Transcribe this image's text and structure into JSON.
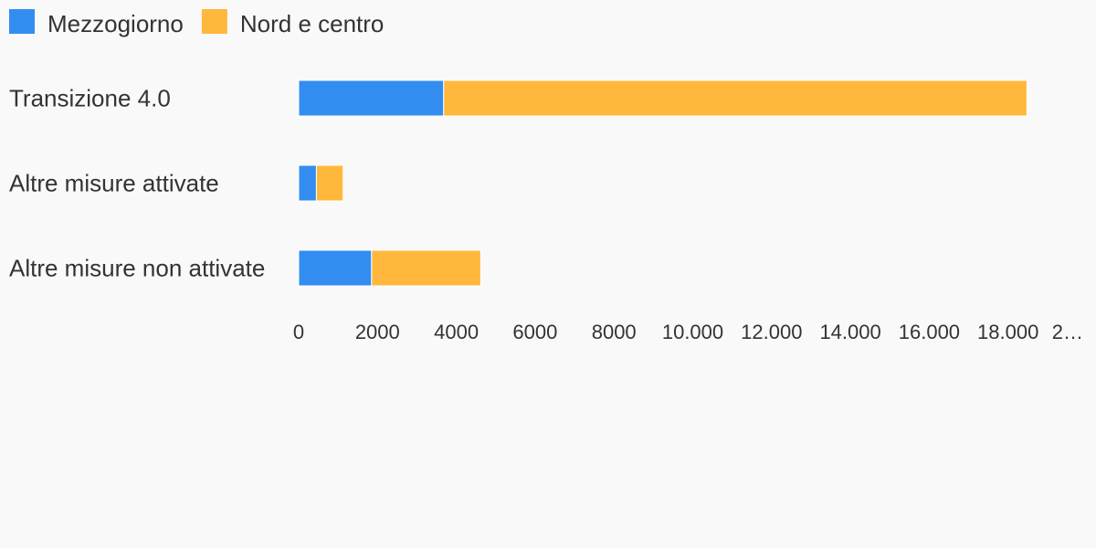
{
  "colors": {
    "background": "#f9f9f9",
    "text": "#333333",
    "series": [
      "#338df0",
      "#ffb83b"
    ]
  },
  "chart_data": {
    "type": "bar",
    "orientation": "horizontal",
    "stacked": true,
    "categories": [
      "Transizione 4.0",
      "Altre misure attivate",
      "Altre misure non attivate"
    ],
    "series": [
      {
        "name": "Mezzogiorno",
        "values": [
          3680,
          450,
          1850
        ]
      },
      {
        "name": "Nord e centro",
        "values": [
          14800,
          680,
          2770
        ]
      }
    ],
    "xlim": [
      0,
      20000
    ],
    "x_ticks": [
      "0",
      "2000",
      "4000",
      "6000",
      "8000",
      "10.000",
      "12.000",
      "14.000",
      "16.000",
      "18.000",
      "2…"
    ],
    "grid": false,
    "legend_position": "top-left"
  }
}
